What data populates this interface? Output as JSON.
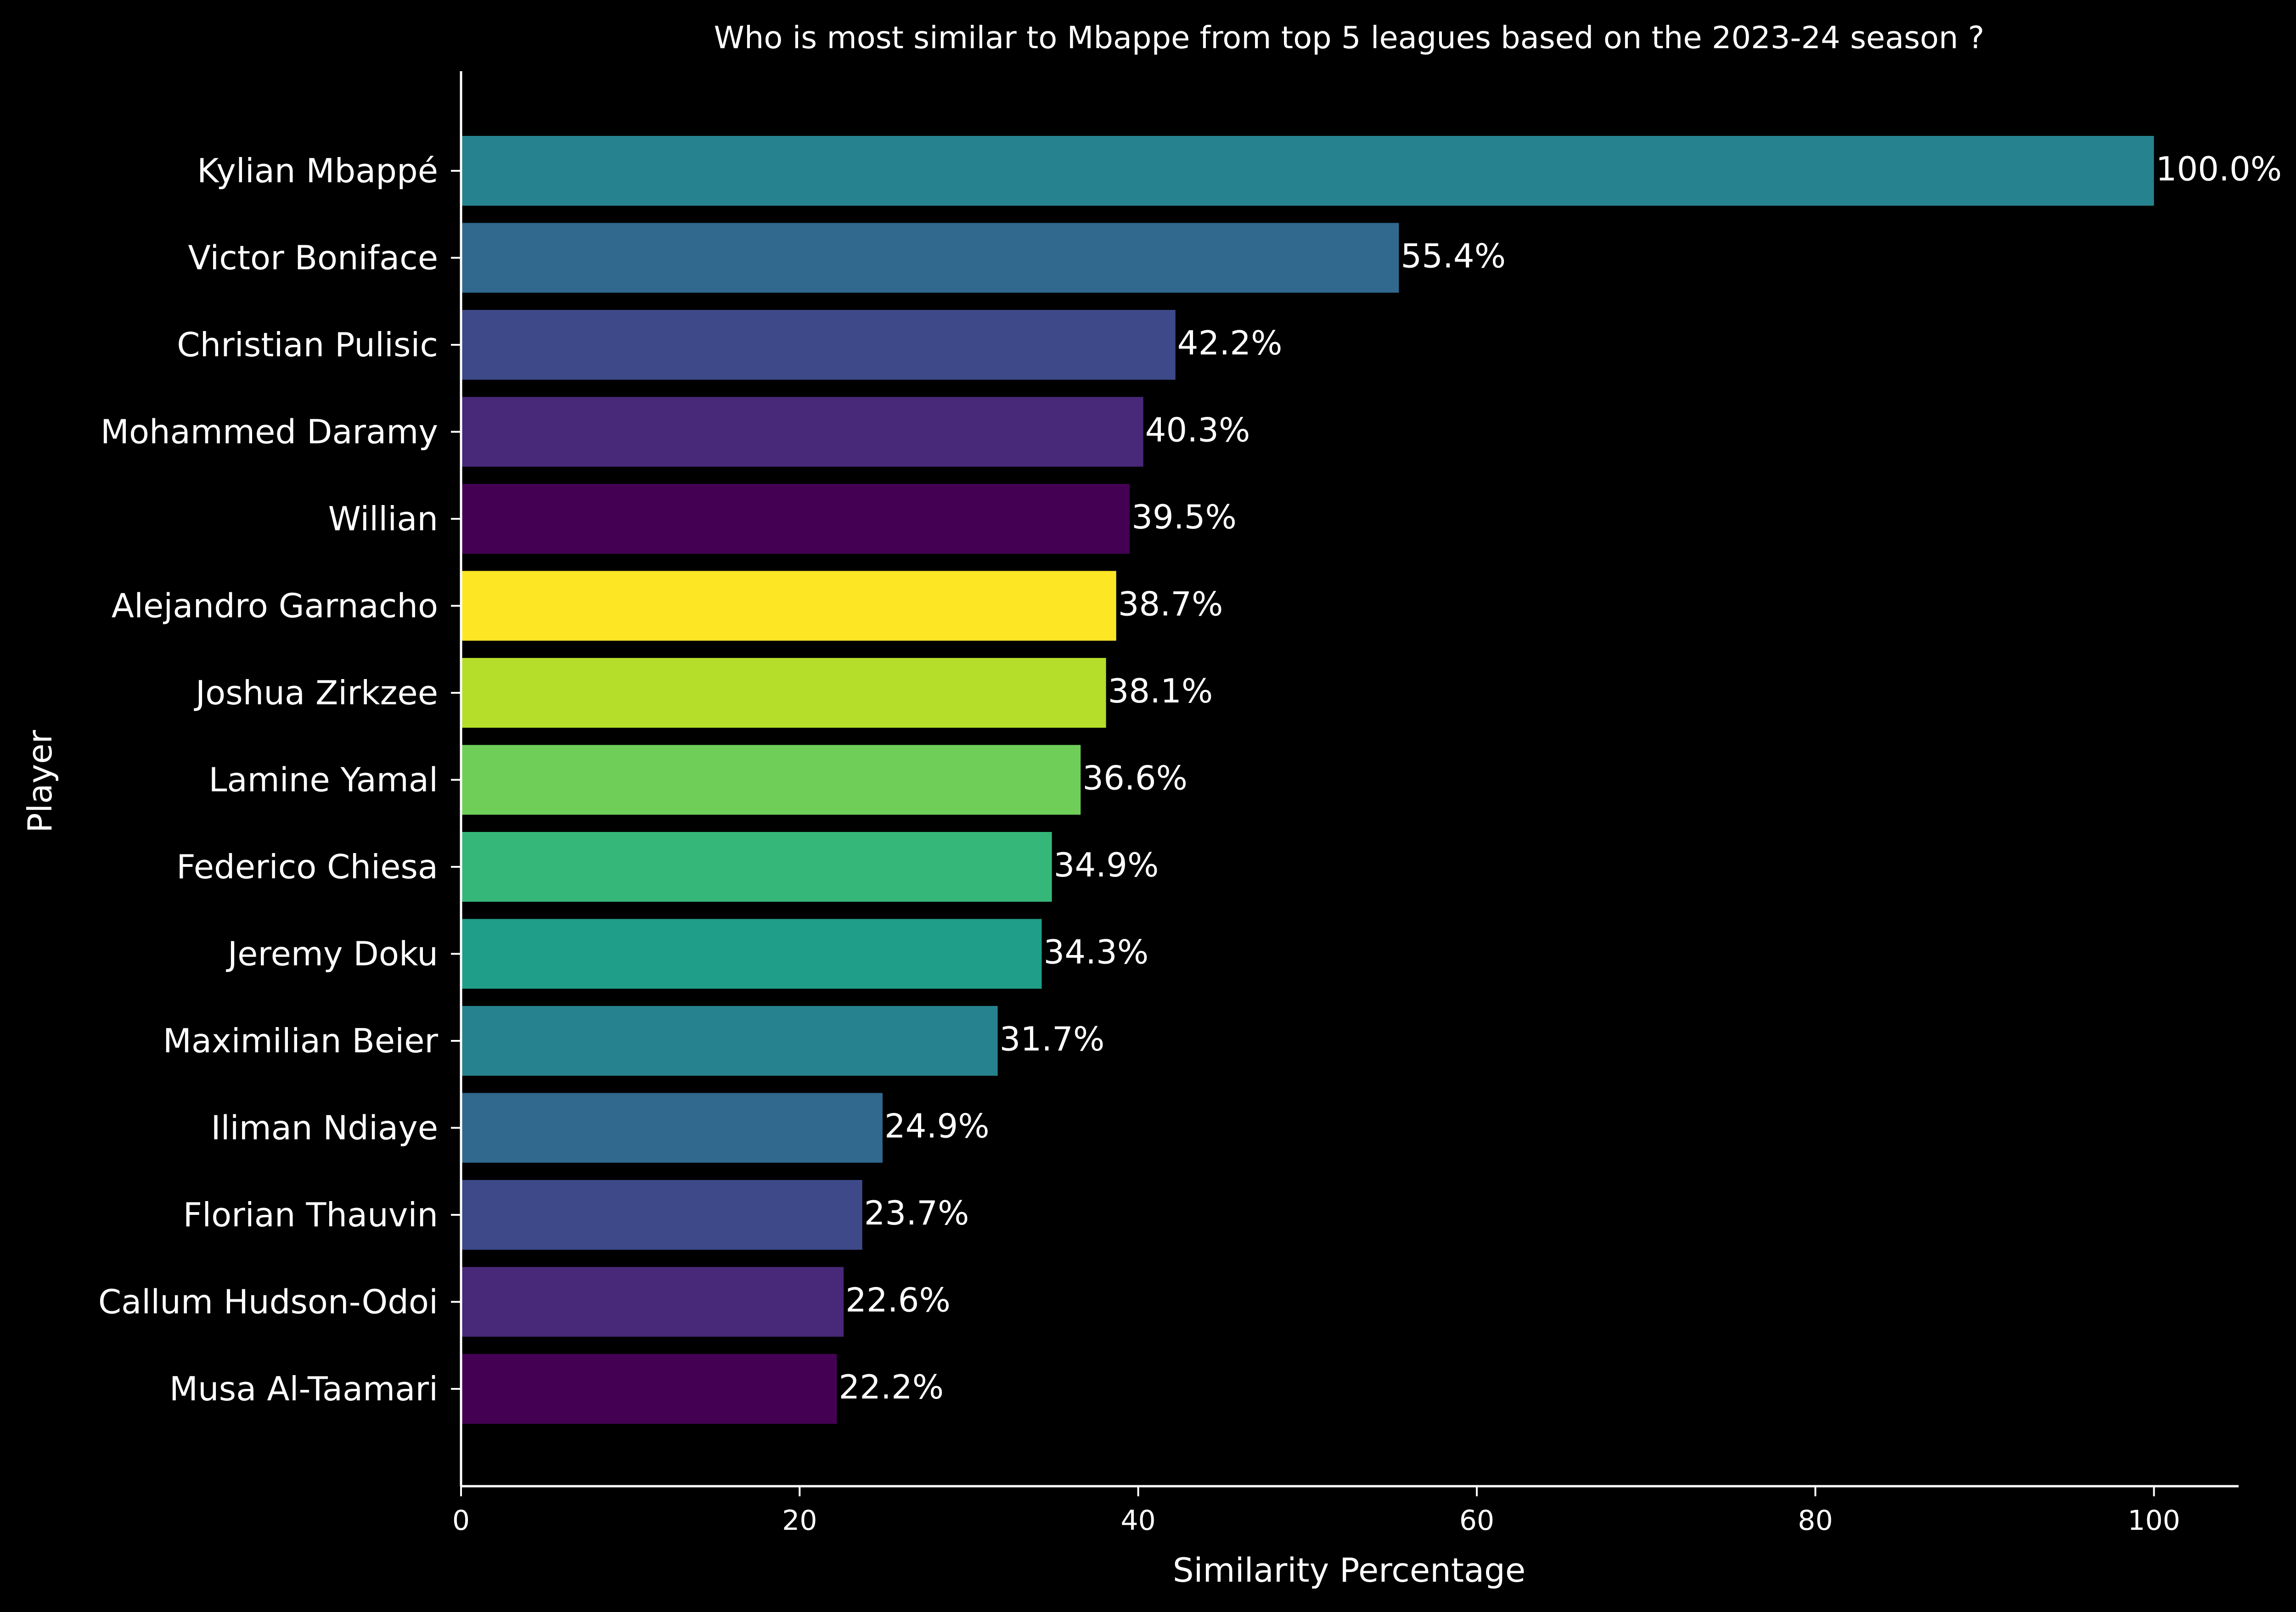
{
  "chart_data": {
    "type": "bar",
    "orientation": "horizontal",
    "title": "Who is most similar to Mbappe from top 5 leagues based on the 2023-24 season ?",
    "xlabel": "Similarity Percentage",
    "ylabel": "Player",
    "xlim": [
      0,
      105
    ],
    "xticks": [
      "0",
      "20",
      "40",
      "60",
      "80",
      "100"
    ],
    "categories": [
      "Kylian Mbappé",
      "Victor Boniface",
      "Christian Pulisic",
      "Mohammed Daramy",
      "Willian",
      "Alejandro Garnacho",
      "Joshua Zirkzee",
      "Lamine Yamal",
      "Federico Chiesa",
      "Jeremy Doku",
      "Maximilian Beier",
      "Iliman Ndiaye",
      "Florian Thauvin",
      "Callum Hudson-Odoi",
      "Musa Al-Taamari"
    ],
    "values": [
      100.0,
      55.4,
      42.2,
      40.3,
      39.5,
      38.7,
      38.1,
      36.6,
      34.9,
      34.3,
      31.7,
      24.9,
      23.7,
      22.6,
      22.2
    ],
    "value_labels": [
      "100.0%",
      "55.4%",
      "42.2%",
      "40.3%",
      "39.5%",
      "38.7%",
      "38.1%",
      "36.6%",
      "34.9%",
      "34.3%",
      "31.7%",
      "24.9%",
      "23.7%",
      "22.6%",
      "22.2%"
    ],
    "colors": [
      "#26828e",
      "#31688e",
      "#3e4989",
      "#482878",
      "#440154",
      "#fde725",
      "#b5de2b",
      "#6ece58",
      "#35b779",
      "#1f9e89",
      "#26828e",
      "#31688e",
      "#3e4989",
      "#482878",
      "#440154"
    ],
    "grid": false,
    "background": "#000000",
    "text_color": "#ffffff"
  }
}
